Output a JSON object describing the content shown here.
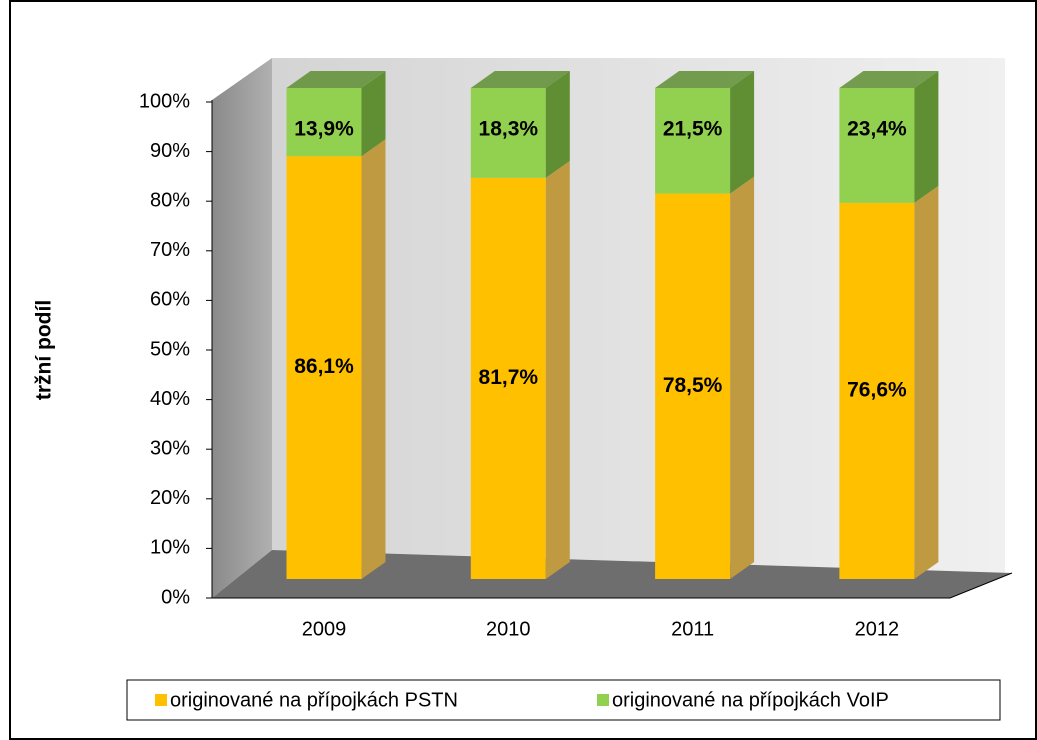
{
  "chart_data": {
    "type": "bar3d_stacked",
    "y_label": "tržní podíl",
    "categories": [
      "2009",
      "2010",
      "2011",
      "2012"
    ],
    "series": [
      {
        "name": "originované na přípojkách PSTN",
        "color": "#FFC000",
        "side_color": "#C09A40",
        "values": [
          86.1,
          81.7,
          78.5,
          76.6
        ],
        "value_labels": [
          "86,1%",
          "81,7%",
          "78,5%",
          "76,6%"
        ]
      },
      {
        "name": "originované na přípojkách VoIP",
        "color": "#92D050",
        "side_color": "#5F8E33",
        "values": [
          13.9,
          18.3,
          21.5,
          23.4
        ],
        "value_labels": [
          "13,9%",
          "18,3%",
          "21,5%",
          "23,4%"
        ]
      }
    ],
    "ylim": [
      0,
      100
    ],
    "yticks": [
      {
        "value": 0,
        "label": "0%"
      },
      {
        "value": 10,
        "label": "10%"
      },
      {
        "value": 20,
        "label": "20%"
      },
      {
        "value": 30,
        "label": "30%"
      },
      {
        "value": 40,
        "label": "40%"
      },
      {
        "value": 50,
        "label": "50%"
      },
      {
        "value": 60,
        "label": "60%"
      },
      {
        "value": 70,
        "label": "70%"
      },
      {
        "value": 80,
        "label": "80%"
      },
      {
        "value": 90,
        "label": "90%"
      },
      {
        "value": 100,
        "label": "100%"
      }
    ],
    "legend": "bottom",
    "grid": false
  }
}
